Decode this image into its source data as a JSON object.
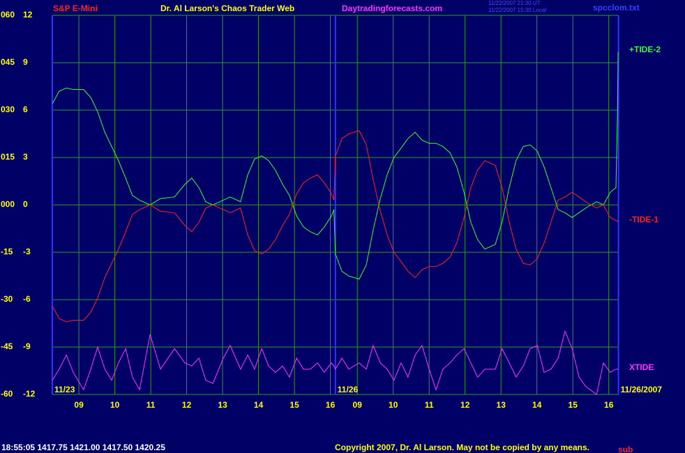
{
  "chart_data": {
    "type": "line",
    "subtitle": "S&P E-Mini",
    "title": "Dr. Al Larson's Chaos Trader Web",
    "site": "Daytradingforecasts.com",
    "timestamps": [
      "11/22/2007 21:30 UT",
      "11/22/2007 15:30 Local"
    ],
    "file": "spcclom.txt",
    "dates": [
      "11/23",
      "11/26",
      "11/26/2007"
    ],
    "x": [
      8.26,
      8.45,
      8.65,
      8.84,
      9.13,
      9.33,
      9.52,
      9.72,
      9.91,
      10.1,
      10.3,
      10.49,
      10.69,
      10.98,
      11.27,
      11.66,
      11.95,
      12.14,
      12.34,
      12.53,
      12.73,
      13.02,
      13.21,
      13.5,
      13.7,
      13.89,
      14.09,
      14.28,
      14.47,
      14.67,
      14.86,
      15.06,
      15.25,
      15.44,
      15.64,
      15.83,
      16.03,
      16.1,
      16.14,
      16.32,
      16.51,
      16.8,
      17.0,
      17.19,
      17.39,
      17.58,
      17.77,
      17.97,
      18.16,
      18.36,
      18.55,
      18.75,
      18.94,
      19.13,
      19.33,
      19.52,
      19.72,
      19.91,
      20.1,
      20.3,
      20.59,
      20.78,
      20.98,
      21.17,
      21.37,
      21.56,
      21.76,
      21.95,
      22.14,
      22.34,
      22.53,
      22.73,
      22.92,
      23.11,
      23.41,
      23.6,
      23.79,
      23.95,
      23.99,
      24.01
    ],
    "xlim": [
      8.26,
      24.02
    ],
    "xticks": [
      {
        "value": 9,
        "label": "09"
      },
      10,
      11,
      12,
      13,
      14,
      15,
      16,
      {
        "value": 16.75,
        "label": "09"
      },
      {
        "value": 17.75,
        "label": "10"
      },
      {
        "value": 18.75,
        "label": "11"
      },
      {
        "value": 19.75,
        "label": "12"
      },
      {
        "value": 20.75,
        "label": "13"
      },
      {
        "value": 21.75,
        "label": "14"
      },
      {
        "value": 22.75,
        "label": "15"
      },
      {
        "value": 23.75,
        "label": "16"
      }
    ],
    "day_break": 16.14,
    "ylim": [
      -12,
      12
    ],
    "yticks": [
      12,
      9,
      6,
      3,
      0,
      -3,
      -6,
      -9,
      -12
    ],
    "y2lim": [
      -60,
      60
    ],
    "y2ticks": [
      {
        "value": 60,
        "label": "060"
      },
      {
        "value": 45,
        "label": "045"
      },
      {
        "value": 30,
        "label": "030"
      },
      {
        "value": 15,
        "label": "015"
      },
      {
        "value": 0,
        "label": "000"
      },
      -15,
      -30,
      -45,
      -60
    ],
    "grid": true,
    "series": [
      {
        "name": "+TIDE-2",
        "color": "#33ff33",
        "values": [
          6.4,
          7.2,
          7.4,
          7.3,
          7.3,
          6.8,
          5.9,
          4.6,
          3.7,
          2.8,
          1.7,
          0.6,
          0.3,
          0,
          0.4,
          0.5,
          1.3,
          1.7,
          1.1,
          0.2,
          0,
          0.3,
          0.5,
          0.2,
          1.9,
          2.9,
          3.1,
          2.8,
          2.2,
          1.3,
          0.6,
          -0.7,
          -1.4,
          -1.7,
          -1.9,
          -1.4,
          -0.7,
          -0.3,
          -3.1,
          -4.2,
          -4.5,
          -4.7,
          -3.8,
          -1.6,
          0.4,
          1.9,
          3.0,
          3.6,
          4.2,
          4.6,
          4.1,
          3.9,
          3.9,
          3.7,
          3.3,
          2.4,
          0.8,
          -1.1,
          -2.2,
          -2.8,
          -2.5,
          -1.1,
          1.1,
          2.8,
          3.7,
          3.8,
          3.4,
          2.4,
          1.1,
          -0.3,
          -0.5,
          -0.8,
          -0.5,
          -0.2,
          0.2,
          0,
          0.8,
          1.1,
          5.5,
          9.7
        ]
      },
      {
        "name": "-TIDE-1",
        "color": "#ff2020",
        "values": [
          -6.4,
          -7.2,
          -7.4,
          -7.3,
          -7.3,
          -6.8,
          -5.9,
          -4.6,
          -3.7,
          -2.8,
          -1.7,
          -0.6,
          -0.3,
          0,
          -0.4,
          -0.5,
          -1.3,
          -1.7,
          -1.1,
          -0.2,
          0,
          -0.3,
          -0.5,
          -0.2,
          -1.9,
          -2.9,
          -3.1,
          -2.8,
          -2.2,
          -1.3,
          -0.6,
          0.7,
          1.4,
          1.7,
          1.9,
          1.4,
          0.7,
          0.3,
          3.1,
          4.2,
          4.5,
          4.7,
          3.8,
          1.6,
          -0.4,
          -1.9,
          -3.0,
          -3.6,
          -4.2,
          -4.6,
          -4.1,
          -3.9,
          -3.9,
          -3.7,
          -3.3,
          -2.4,
          -0.8,
          1.1,
          2.2,
          2.8,
          2.5,
          1.1,
          -1.1,
          -2.8,
          -3.7,
          -3.8,
          -3.4,
          -2.4,
          -1.1,
          0.3,
          0.5,
          0.8,
          0.5,
          0.2,
          -0.2,
          0,
          -0.8,
          -1.0,
          -1.0,
          -1.1
        ]
      },
      {
        "name": "XTIDE",
        "color": "#ff33ff",
        "values": [
          -11.1,
          -10.4,
          -9.5,
          -10.6,
          -11.7,
          -10.4,
          -9.0,
          -10.4,
          -11.1,
          -10.0,
          -9.1,
          -10.9,
          -11.7,
          -8.2,
          -10.4,
          -9.1,
          -10.0,
          -10.2,
          -9.7,
          -11.1,
          -11.3,
          -9.7,
          -8.9,
          -10.4,
          -9.5,
          -10.4,
          -9.1,
          -10.2,
          -10.6,
          -10.2,
          -10.9,
          -9.7,
          -10.4,
          -10.4,
          -10.0,
          -10.6,
          -10.0,
          -10.2,
          -10.4,
          -9.7,
          -10.4,
          -10.0,
          -10.4,
          -8.9,
          -10.0,
          -10.4,
          -11.1,
          -10.0,
          -10.9,
          -9.5,
          -8.9,
          -10.4,
          -11.7,
          -10.4,
          -10.0,
          -9.5,
          -9.1,
          -10.0,
          -10.9,
          -10.4,
          -10.4,
          -9.1,
          -10.0,
          -10.9,
          -10.2,
          -9.1,
          -8.9,
          -10.6,
          -10.4,
          -9.7,
          -8.0,
          -9.1,
          -10.9,
          -11.5,
          -12.0,
          -10.0,
          -10.6,
          -10.4,
          -10.4,
          -10.4
        ]
      }
    ],
    "footer": {
      "quote": "18:55:05 1417.75 1421.00 1417.50 1420.25",
      "copyright": "Copyright 2007, Dr. Al Larson. May not be copied by any means.",
      "note": "sub"
    }
  }
}
